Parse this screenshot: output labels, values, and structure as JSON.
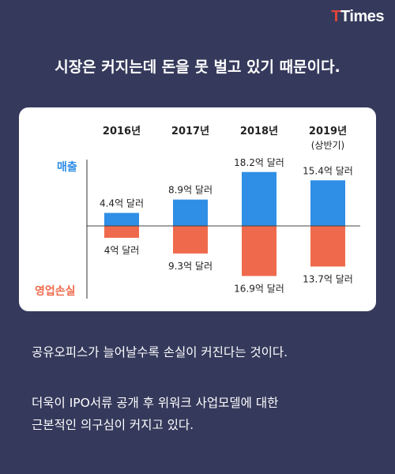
{
  "brand": {
    "logo_t": "T",
    "logo_rest": "Times"
  },
  "headline": "시장은 커지는데 돈을 못 벌고 있기 때문이다.",
  "paragraphs": [
    [
      "공유오피스가 늘어날수록 손실이 커진다는 것이다."
    ],
    [
      "더욱이 IPO서류 공개 후 위워크 사업모델에 대한",
      "근본적인 의구심이 커지고 있다."
    ]
  ],
  "chart_data": {
    "type": "bar",
    "title": "",
    "categories": [
      "2016년",
      "2017년",
      "2018년",
      "2019년"
    ],
    "category_notes": [
      "",
      "",
      "",
      "(상반기)"
    ],
    "series": [
      {
        "name": "매출",
        "color": "#2f8ee6",
        "values": [
          4.4,
          8.9,
          18.2,
          15.4
        ],
        "labels": [
          "4.4억 달러",
          "8.9억 달러",
          "18.2억 달러",
          "15.4억 달러"
        ]
      },
      {
        "name": "영업손실",
        "color": "#ef6a4c",
        "values": [
          -4,
          -9.3,
          -16.9,
          -13.7
        ],
        "labels": [
          "4억 달러",
          "9.3억 달러",
          "16.9억 달러",
          "13.7억 달러"
        ]
      }
    ],
    "ylim": [
      -18,
      18.5
    ],
    "legend_placement": "left",
    "grid": false
  }
}
